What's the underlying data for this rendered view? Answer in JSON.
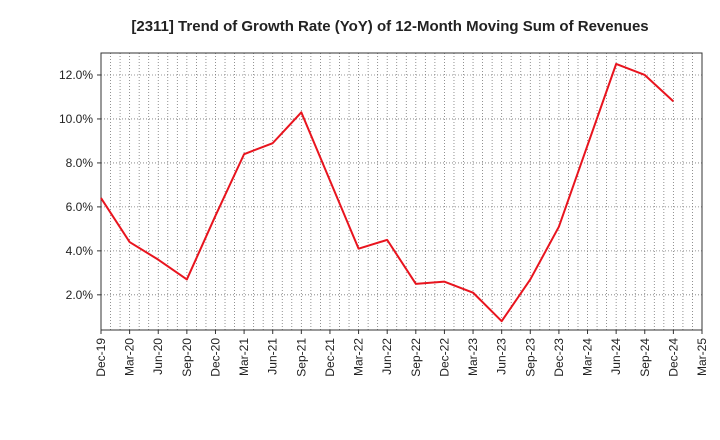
{
  "chart_data": {
    "type": "line",
    "title": "[2311]  Trend of Growth Rate (YoY) of 12-Month Moving Sum of Revenues",
    "xlabel": "",
    "ylabel": "",
    "categories": [
      "Dec-19",
      "Mar-20",
      "Jun-20",
      "Sep-20",
      "Dec-20",
      "Mar-21",
      "Jun-21",
      "Sep-21",
      "Dec-21",
      "Mar-22",
      "Jun-22",
      "Sep-22",
      "Dec-22",
      "Mar-23",
      "Jun-23",
      "Sep-23",
      "Dec-23",
      "Mar-24",
      "Jun-24",
      "Sep-24",
      "Dec-24",
      "Mar-25"
    ],
    "series": [
      {
        "color": "#e8141e",
        "values": [
          6.4,
          4.4,
          3.6,
          2.7,
          5.6,
          8.4,
          8.9,
          10.3,
          7.2,
          4.1,
          4.5,
          2.5,
          2.6,
          2.1,
          0.8,
          2.7,
          5.1,
          8.8,
          12.5,
          12.0,
          10.8,
          null
        ]
      }
    ],
    "yticks": [
      "2.0%",
      "4.0%",
      "6.0%",
      "8.0%",
      "10.0%",
      "12.0%"
    ],
    "ytick_values": [
      2,
      4,
      6,
      8,
      10,
      12
    ],
    "ylim": [
      0.4,
      13.0
    ],
    "grid": true,
    "legend": "none"
  }
}
